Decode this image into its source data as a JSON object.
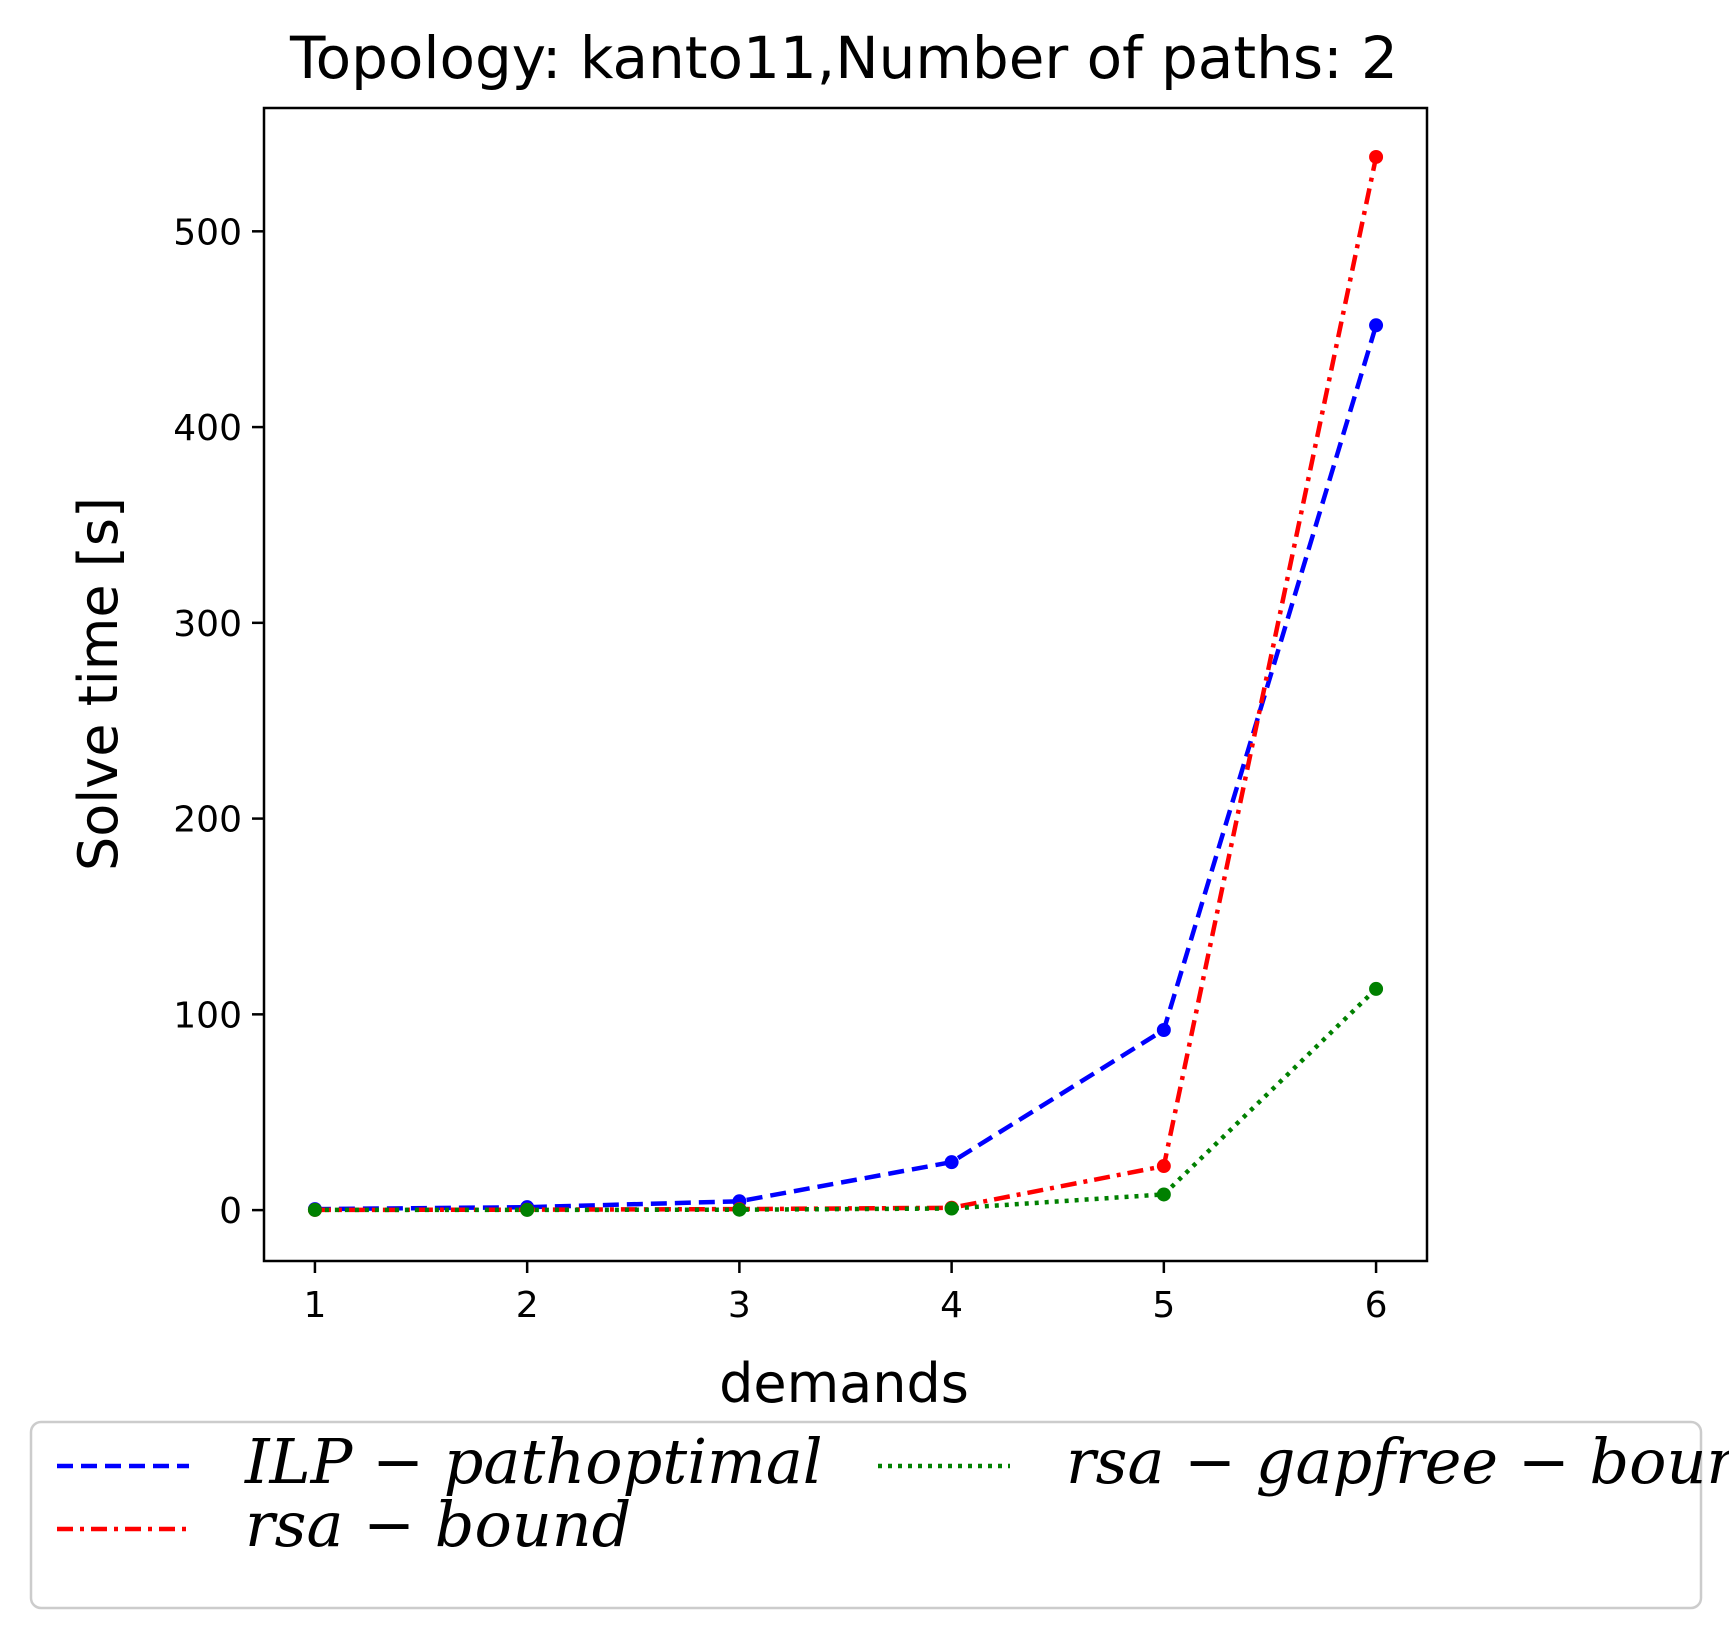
{
  "chart_data": {
    "type": "line",
    "title": "Topology: kanto11,Number of paths: 2",
    "xlabel": "demands",
    "ylabel": "Solve time [s]",
    "xlim": [
      0.76,
      6.24
    ],
    "ylim": [
      -26,
      563
    ],
    "x": [
      1,
      2,
      3,
      4,
      5,
      6
    ],
    "x_ticks": [
      1,
      2,
      3,
      4,
      5,
      6
    ],
    "y_ticks": [
      0,
      100,
      200,
      300,
      400,
      500
    ],
    "grid": false,
    "legend_position": "bottom, outside plot",
    "series": [
      {
        "name": "ILP − pathoptimal",
        "label_parts": [
          "ILP",
          "pathoptimal"
        ],
        "values": [
          0.5,
          1.5,
          4.5,
          24.5,
          92,
          452
        ],
        "color": "#0000ff",
        "dash": "16 8"
      },
      {
        "name": "rsa − bound",
        "label_parts": [
          "rsa",
          "bound"
        ],
        "values": [
          0.1,
          0.2,
          0.5,
          1.2,
          22.5,
          538
        ],
        "color": "#ff0000",
        "dash": "16 7 4 7"
      },
      {
        "name": "rsa − gapfree − bound",
        "label_parts": [
          "rsa",
          "gapfree",
          "bound"
        ],
        "values": [
          0.1,
          0.1,
          0.2,
          0.8,
          8,
          113
        ],
        "color": "#008000",
        "dash": "4 6"
      }
    ]
  }
}
